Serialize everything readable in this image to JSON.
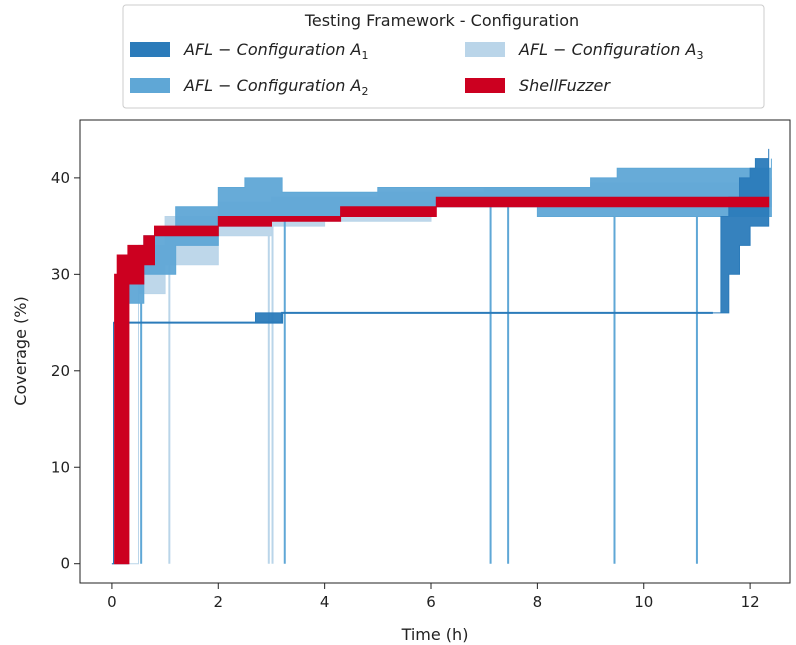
{
  "chart_data": {
    "type": "area",
    "xlabel": "Time (h)",
    "ylabel": "Coverage (%)",
    "xlim": [
      -0.6,
      12.75
    ],
    "ylim": [
      -2,
      46
    ],
    "xticks": [
      0,
      2,
      4,
      6,
      8,
      10,
      12
    ],
    "yticks": [
      0,
      10,
      20,
      30,
      40
    ],
    "grid": false,
    "legend": {
      "title": "Testing Framework - Configuration",
      "placement": "top-center",
      "columns": 2
    },
    "series": [
      {
        "name": "AFL − Configuration A",
        "subscript": "1",
        "color": "#2b7bba",
        "lower": [
          [
            0,
            0
          ],
          [
            0.03,
            25
          ],
          [
            2.7,
            25
          ],
          [
            3.2,
            26
          ],
          [
            11.3,
            26
          ],
          [
            11.45,
            26
          ],
          [
            11.6,
            30
          ],
          [
            11.8,
            33
          ],
          [
            12.0,
            35
          ],
          [
            12.35,
            36
          ]
        ],
        "upper": [
          [
            0,
            0
          ],
          [
            0.03,
            25
          ],
          [
            2.7,
            26
          ],
          [
            3.2,
            26
          ],
          [
            11.3,
            26
          ],
          [
            11.45,
            36
          ],
          [
            11.6,
            38
          ],
          [
            11.8,
            40
          ],
          [
            12.0,
            41
          ],
          [
            12.1,
            42
          ],
          [
            12.35,
            43
          ]
        ]
      },
      {
        "name": "AFL − Configuration A",
        "subscript": "2",
        "color": "#5fa7d6",
        "lower": [
          [
            0,
            0
          ],
          [
            0.3,
            27
          ],
          [
            0.6,
            30
          ],
          [
            1.2,
            33
          ],
          [
            2,
            35
          ],
          [
            3,
            36
          ],
          [
            4,
            36
          ],
          [
            5,
            36.5
          ],
          [
            6,
            37
          ],
          [
            8,
            36
          ],
          [
            10,
            36
          ],
          [
            12.4,
            36
          ]
        ],
        "upper": [
          [
            0,
            0
          ],
          [
            0.3,
            31
          ],
          [
            0.6,
            34
          ],
          [
            1.2,
            37
          ],
          [
            2,
            39
          ],
          [
            2.5,
            40
          ],
          [
            3.0,
            40
          ],
          [
            3.2,
            38.5
          ],
          [
            5,
            39
          ],
          [
            7,
            39
          ],
          [
            9,
            40
          ],
          [
            9.5,
            41
          ],
          [
            11,
            41
          ],
          [
            12.4,
            42
          ]
        ],
        "dips": [
          [
            0.55,
            0
          ],
          [
            3.25,
            0
          ],
          [
            7.12,
            0
          ],
          [
            7.45,
            0
          ],
          [
            9.45,
            0
          ],
          [
            11.0,
            0
          ]
        ]
      },
      {
        "name": "AFL − Configuration A",
        "subscript": "3",
        "color": "#bad5e9",
        "lower": [
          [
            0,
            0
          ],
          [
            0.5,
            28
          ],
          [
            1.0,
            31
          ],
          [
            2.0,
            34
          ],
          [
            3.0,
            35
          ],
          [
            4.0,
            35.5
          ],
          [
            6,
            37
          ],
          [
            8,
            37
          ],
          [
            10,
            37
          ],
          [
            12.4,
            37
          ]
        ],
        "upper": [
          [
            0,
            0
          ],
          [
            0.5,
            33
          ],
          [
            1.0,
            36
          ],
          [
            2.0,
            37.5
          ],
          [
            3.0,
            38
          ],
          [
            4.0,
            38
          ],
          [
            5.0,
            38.5
          ],
          [
            7.0,
            39
          ],
          [
            9.0,
            39.5
          ],
          [
            12.4,
            40
          ]
        ],
        "dips": [
          [
            1.08,
            0
          ],
          [
            2.95,
            0
          ],
          [
            3.02,
            0
          ]
        ]
      },
      {
        "name": "ShellFuzzer",
        "subscript": "",
        "color": "#cc0020",
        "lower": [
          [
            0.05,
            0
          ],
          [
            0.3,
            0
          ],
          [
            0.32,
            29
          ],
          [
            0.6,
            31
          ],
          [
            0.8,
            34
          ],
          [
            1.3,
            34
          ],
          [
            2.0,
            35
          ],
          [
            3.0,
            35.5
          ],
          [
            4.3,
            36
          ],
          [
            6.1,
            37
          ],
          [
            8,
            37
          ],
          [
            10,
            37
          ],
          [
            12.35,
            37
          ]
        ],
        "upper": [
          [
            0.05,
            0
          ],
          [
            0.05,
            30
          ],
          [
            0.1,
            32
          ],
          [
            0.3,
            33
          ],
          [
            0.6,
            34
          ],
          [
            0.8,
            35
          ],
          [
            1.3,
            35
          ],
          [
            2.0,
            36
          ],
          [
            3.0,
            36
          ],
          [
            4.3,
            37
          ],
          [
            6.1,
            38
          ],
          [
            8,
            38
          ],
          [
            10,
            38
          ],
          [
            12.35,
            38
          ]
        ]
      }
    ]
  }
}
